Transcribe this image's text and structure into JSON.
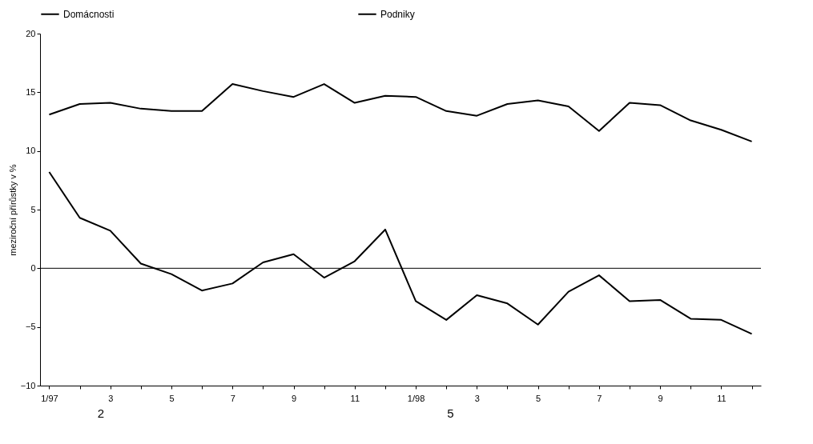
{
  "chart_data": {
    "type": "line",
    "ylabel": "meziroční přírůstky v %",
    "categories": [
      "1/97",
      null,
      "3",
      null,
      "5",
      null,
      "7",
      null,
      "9",
      null,
      "11",
      null,
      "1/98",
      null,
      "3",
      null,
      "5",
      null,
      "7",
      null,
      "9",
      null,
      "11",
      null
    ],
    "series": [
      {
        "name": "Domácnosti",
        "color": "#000000",
        "values": [
          13.1,
          14.0,
          14.1,
          13.6,
          13.4,
          13.4,
          15.7,
          15.1,
          14.6,
          15.7,
          14.1,
          14.7,
          14.6,
          13.4,
          13.0,
          14.0,
          14.3,
          13.8,
          11.7,
          14.1,
          13.9,
          12.6,
          11.8,
          10.8
        ]
      },
      {
        "name": "Podniky",
        "color": "#000000",
        "values": [
          8.2,
          4.3,
          3.2,
          0.4,
          -0.5,
          -1.9,
          -1.3,
          0.5,
          1.2,
          -0.8,
          0.6,
          3.3,
          -2.8,
          -4.4,
          -2.3,
          -3.0,
          -4.8,
          -2.0,
          -0.6,
          -2.8,
          -2.7,
          -4.3,
          -4.4,
          -5.6
        ]
      }
    ],
    "ylim": [
      -10,
      20
    ],
    "yticks": [
      -10,
      -5,
      0,
      5,
      10,
      15,
      20
    ],
    "ref_lines": [
      {
        "axis": "y",
        "value": 0,
        "label": null,
        "color": "#000000"
      }
    ],
    "legend": "top",
    "grid": false,
    "marker": "none",
    "line_style": "solid",
    "annotations": [
      "2",
      "5"
    ]
  }
}
